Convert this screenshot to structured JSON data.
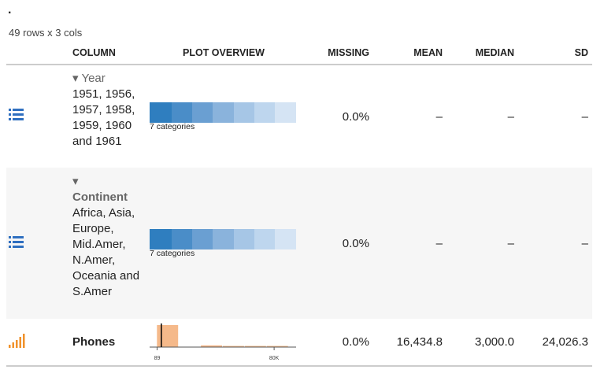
{
  "header": {
    "mark": ".",
    "summary": "49 rows x 3 cols"
  },
  "table": {
    "columns": [
      "COLUMN",
      "PLOT OVERVIEW",
      "MISSING",
      "MEAN",
      "MEDIAN",
      "SD"
    ],
    "rows": [
      {
        "name": "Year",
        "values": "1951, 1956, 1957, 1958, 1959, 1960 and 1961",
        "plot_label": "7 categories",
        "missing": "0.0%",
        "mean": "–",
        "median": "–",
        "sd": "–"
      },
      {
        "name": "Continent",
        "values": "Africa, Asia, Europe, Mid.Amer, N.Amer, Oceania and S.Amer",
        "plot_label": "7 categories",
        "missing": "0.0%",
        "mean": "–",
        "median": "–",
        "sd": "–"
      },
      {
        "name": "Phones",
        "missing": "0.0%",
        "mean": "16,434.8",
        "median": "3,000.0",
        "sd": "24,026.3",
        "histogram": {
          "bins": [
            0,
            15000,
            30000,
            45000,
            60000,
            75000,
            90000
          ],
          "counts": [
            38,
            0,
            3,
            2,
            2,
            2
          ],
          "xlim": [
            -5000,
            95000
          ],
          "ylim": [
            0,
            38
          ],
          "xticks": [
            89,
            {
              "value": 80000,
              "label": "80K"
            }
          ],
          "marker": 3000,
          "color": "#f5b98a"
        }
      }
    ]
  }
}
